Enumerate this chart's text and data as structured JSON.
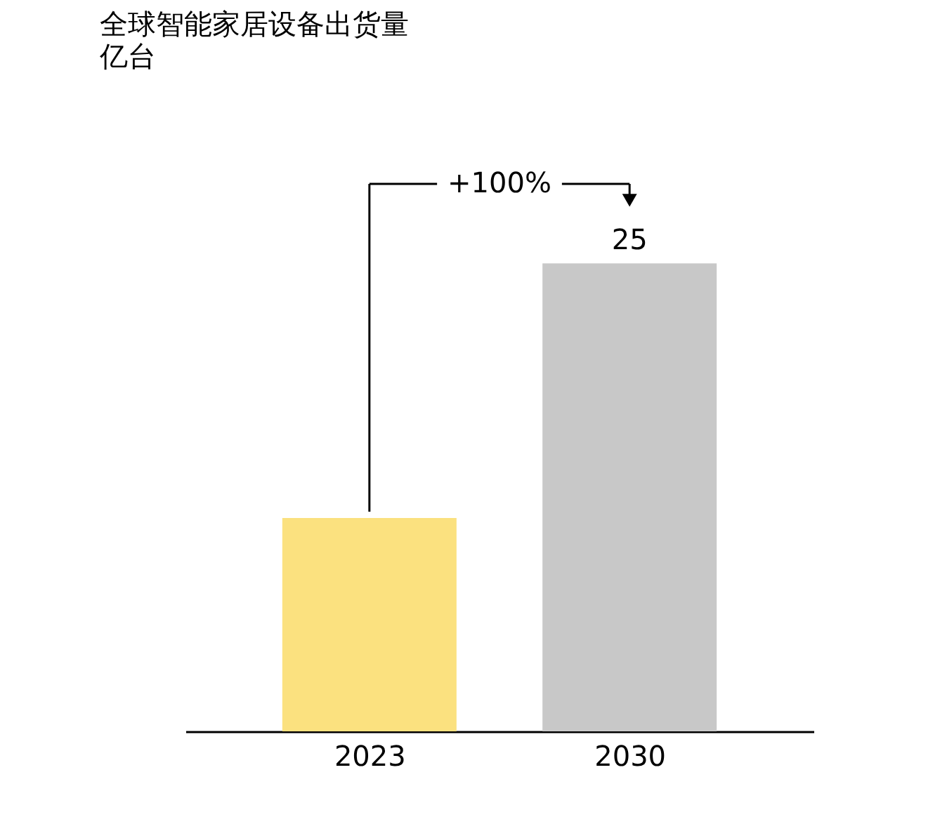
{
  "chart_data": {
    "type": "bar",
    "title": "全球智能家居设备出货量",
    "subtitle": "亿台",
    "categories": [
      "2023",
      "2030"
    ],
    "values": [
      11.4,
      25
    ],
    "colors": [
      "#fbe17f",
      "#c8c8c8"
    ],
    "value_labels": [
      null,
      "25"
    ],
    "annotations": [
      "+100%"
    ]
  }
}
